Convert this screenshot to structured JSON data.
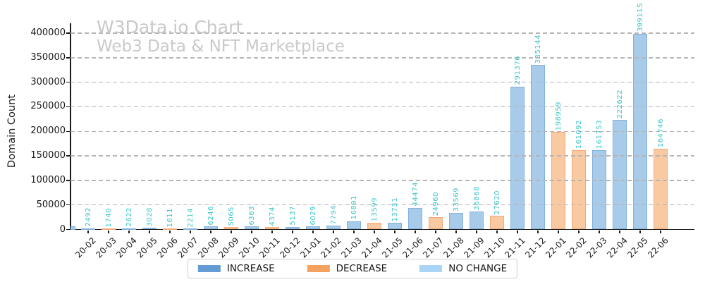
{
  "header": {
    "title": "W3Data.io Chart",
    "subtitle": "Web3 Data & NFT Marketplace",
    "watermark_color": "#c8c8c8"
  },
  "legend": [
    {
      "label": "INCREASE",
      "color": "#639bd2"
    },
    {
      "label": "DECREASE",
      "color": "#f5a261"
    },
    {
      "label": "NO CHANGE",
      "color": "#aad4f5"
    }
  ],
  "chart_data": {
    "type": "bar",
    "title": "W3Data.io Chart",
    "subtitle": "Web3 Data & NFT Marketplace",
    "xlabel": "",
    "ylabel": "Domain Count",
    "ylim": [
      0,
      400000
    ],
    "yticks": [
      0,
      50000,
      100000,
      150000,
      200000,
      250000,
      300000,
      350000,
      400000
    ],
    "grid": "dashed-horizontal-over-bars",
    "legend_position": "bottom-center",
    "categories": [
      "20-02",
      "20-03",
      "20-04",
      "20-05",
      "20-06",
      "20-07",
      "20-08",
      "20-09",
      "20-10",
      "20-11",
      "20-12",
      "21-01",
      "21-02",
      "21-03",
      "21-04",
      "21-05",
      "21-06",
      "21-07",
      "21-08",
      "21-09",
      "21-10",
      "21-11",
      "21-12",
      "22-01",
      "22-02",
      "22-03",
      "22-04",
      "22-05",
      "22-06"
    ],
    "values": [
      2492,
      1740,
      2622,
      3028,
      1611,
      2214,
      6246,
      5065,
      6363,
      4374,
      5137,
      6029,
      7794,
      16891,
      13599,
      13731,
      44474,
      24960,
      33569,
      36868,
      27620,
      291376,
      335144,
      198959,
      161092,
      161753,
      222622,
      399115,
      164746
    ],
    "statuses": [
      "increase",
      "decrease",
      "increase",
      "increase",
      "decrease",
      "increase",
      "increase",
      "decrease",
      "increase",
      "decrease",
      "increase",
      "increase",
      "increase",
      "increase",
      "decrease",
      "increase",
      "increase",
      "decrease",
      "increase",
      "increase",
      "decrease",
      "increase",
      "increase",
      "decrease",
      "decrease",
      "increase",
      "increase",
      "increase",
      "decrease"
    ],
    "bar_fill_colors": {
      "increase": "#a9cbea",
      "decrease": "#f9c9a1",
      "no_change": "#c9e2f6"
    },
    "bar_edge_colors": {
      "increase": "#82b2de",
      "decrease": "#f2ab78",
      "no_change": "#a9d3f0"
    },
    "value_label_color": "#3fc6c9",
    "partial_clipped_bar_at_left_edge": true
  }
}
